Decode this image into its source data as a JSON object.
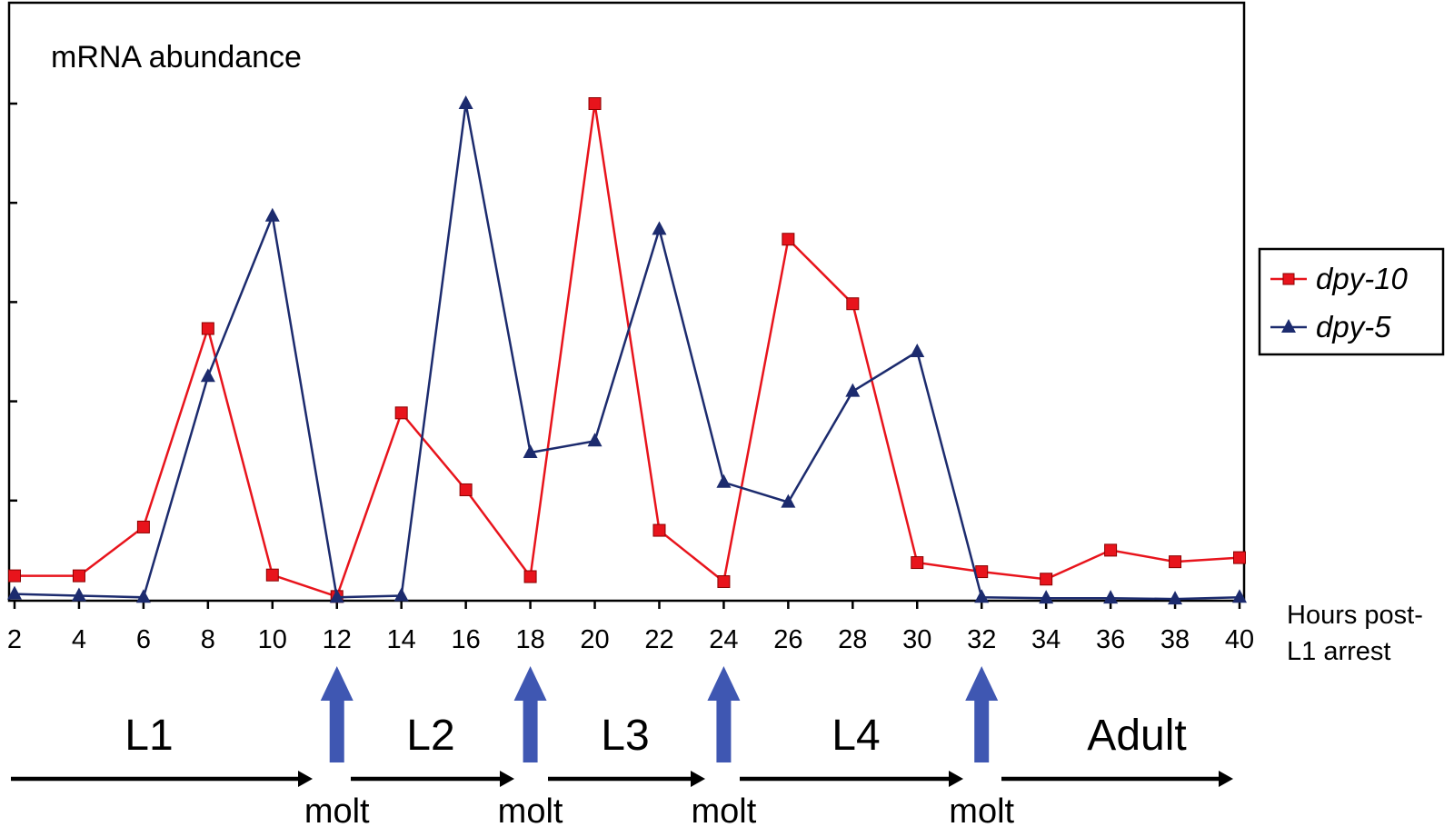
{
  "chart_data": {
    "type": "line",
    "title": "mRNA abundance",
    "xlabel_line1": "Hours post-",
    "xlabel_line2": "L1 arrest",
    "x": [
      2,
      4,
      6,
      8,
      10,
      12,
      14,
      16,
      18,
      20,
      22,
      24,
      26,
      28,
      30,
      32,
      34,
      36,
      38,
      40
    ],
    "xlim": [
      2,
      40
    ],
    "ylim": [
      0,
      6
    ],
    "ytick_count": 5,
    "grid": false,
    "legend_position": "right",
    "series": [
      {
        "name": "dpy-10",
        "color": "#e8141c",
        "marker": "square",
        "values": [
          0.29,
          0.29,
          0.88,
          3.28,
          0.3,
          0.04,
          2.26,
          1.33,
          0.28,
          6.0,
          0.84,
          0.22,
          4.36,
          3.58,
          0.45,
          0.34,
          0.25,
          0.6,
          0.46,
          0.51
        ]
      },
      {
        "name": "dpy-5",
        "color": "#1c2b6e",
        "marker": "triangle",
        "values": [
          0.07,
          0.05,
          0.03,
          2.7,
          4.64,
          0.03,
          0.05,
          6.0,
          1.78,
          1.92,
          4.48,
          1.42,
          1.18,
          2.52,
          3.0,
          0.03,
          0.02,
          0.02,
          0.01,
          0.03
        ]
      }
    ],
    "stages": [
      "L1",
      "L2",
      "L3",
      "L4",
      "Adult"
    ],
    "molt_label": "molt",
    "molt_hours": [
      12,
      18,
      24,
      32
    ],
    "arrow_color": "#3f57b2"
  }
}
